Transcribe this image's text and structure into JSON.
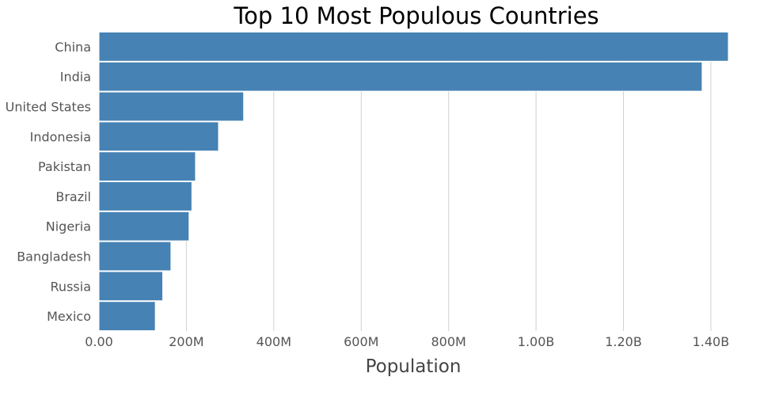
{
  "chart_data": {
    "type": "bar",
    "orientation": "horizontal",
    "title": "Top 10 Most Populous Countries",
    "xlabel": "Population",
    "ylabel": "",
    "categories": [
      "China",
      "India",
      "United States",
      "Indonesia",
      "Pakistan",
      "Brazil",
      "Nigeria",
      "Bangladesh",
      "Russia",
      "Mexico"
    ],
    "values": [
      1440000000,
      1380000000,
      331000000,
      273500000,
      220900000,
      212600000,
      206100000,
      164700000,
      145900000,
      128900000
    ],
    "xlim": [
      0,
      1440000000
    ],
    "xticks": [
      {
        "value": 0,
        "label": "0.00"
      },
      {
        "value": 200000000,
        "label": "200M"
      },
      {
        "value": 400000000,
        "label": "400M"
      },
      {
        "value": 600000000,
        "label": "600M"
      },
      {
        "value": 800000000,
        "label": "800M"
      },
      {
        "value": 1000000000,
        "label": "1.00B"
      },
      {
        "value": 1200000000,
        "label": "1.20B"
      },
      {
        "value": 1400000000,
        "label": "1.40B"
      }
    ],
    "grid": true,
    "legend": "none",
    "bar_color": "#4682b4"
  }
}
